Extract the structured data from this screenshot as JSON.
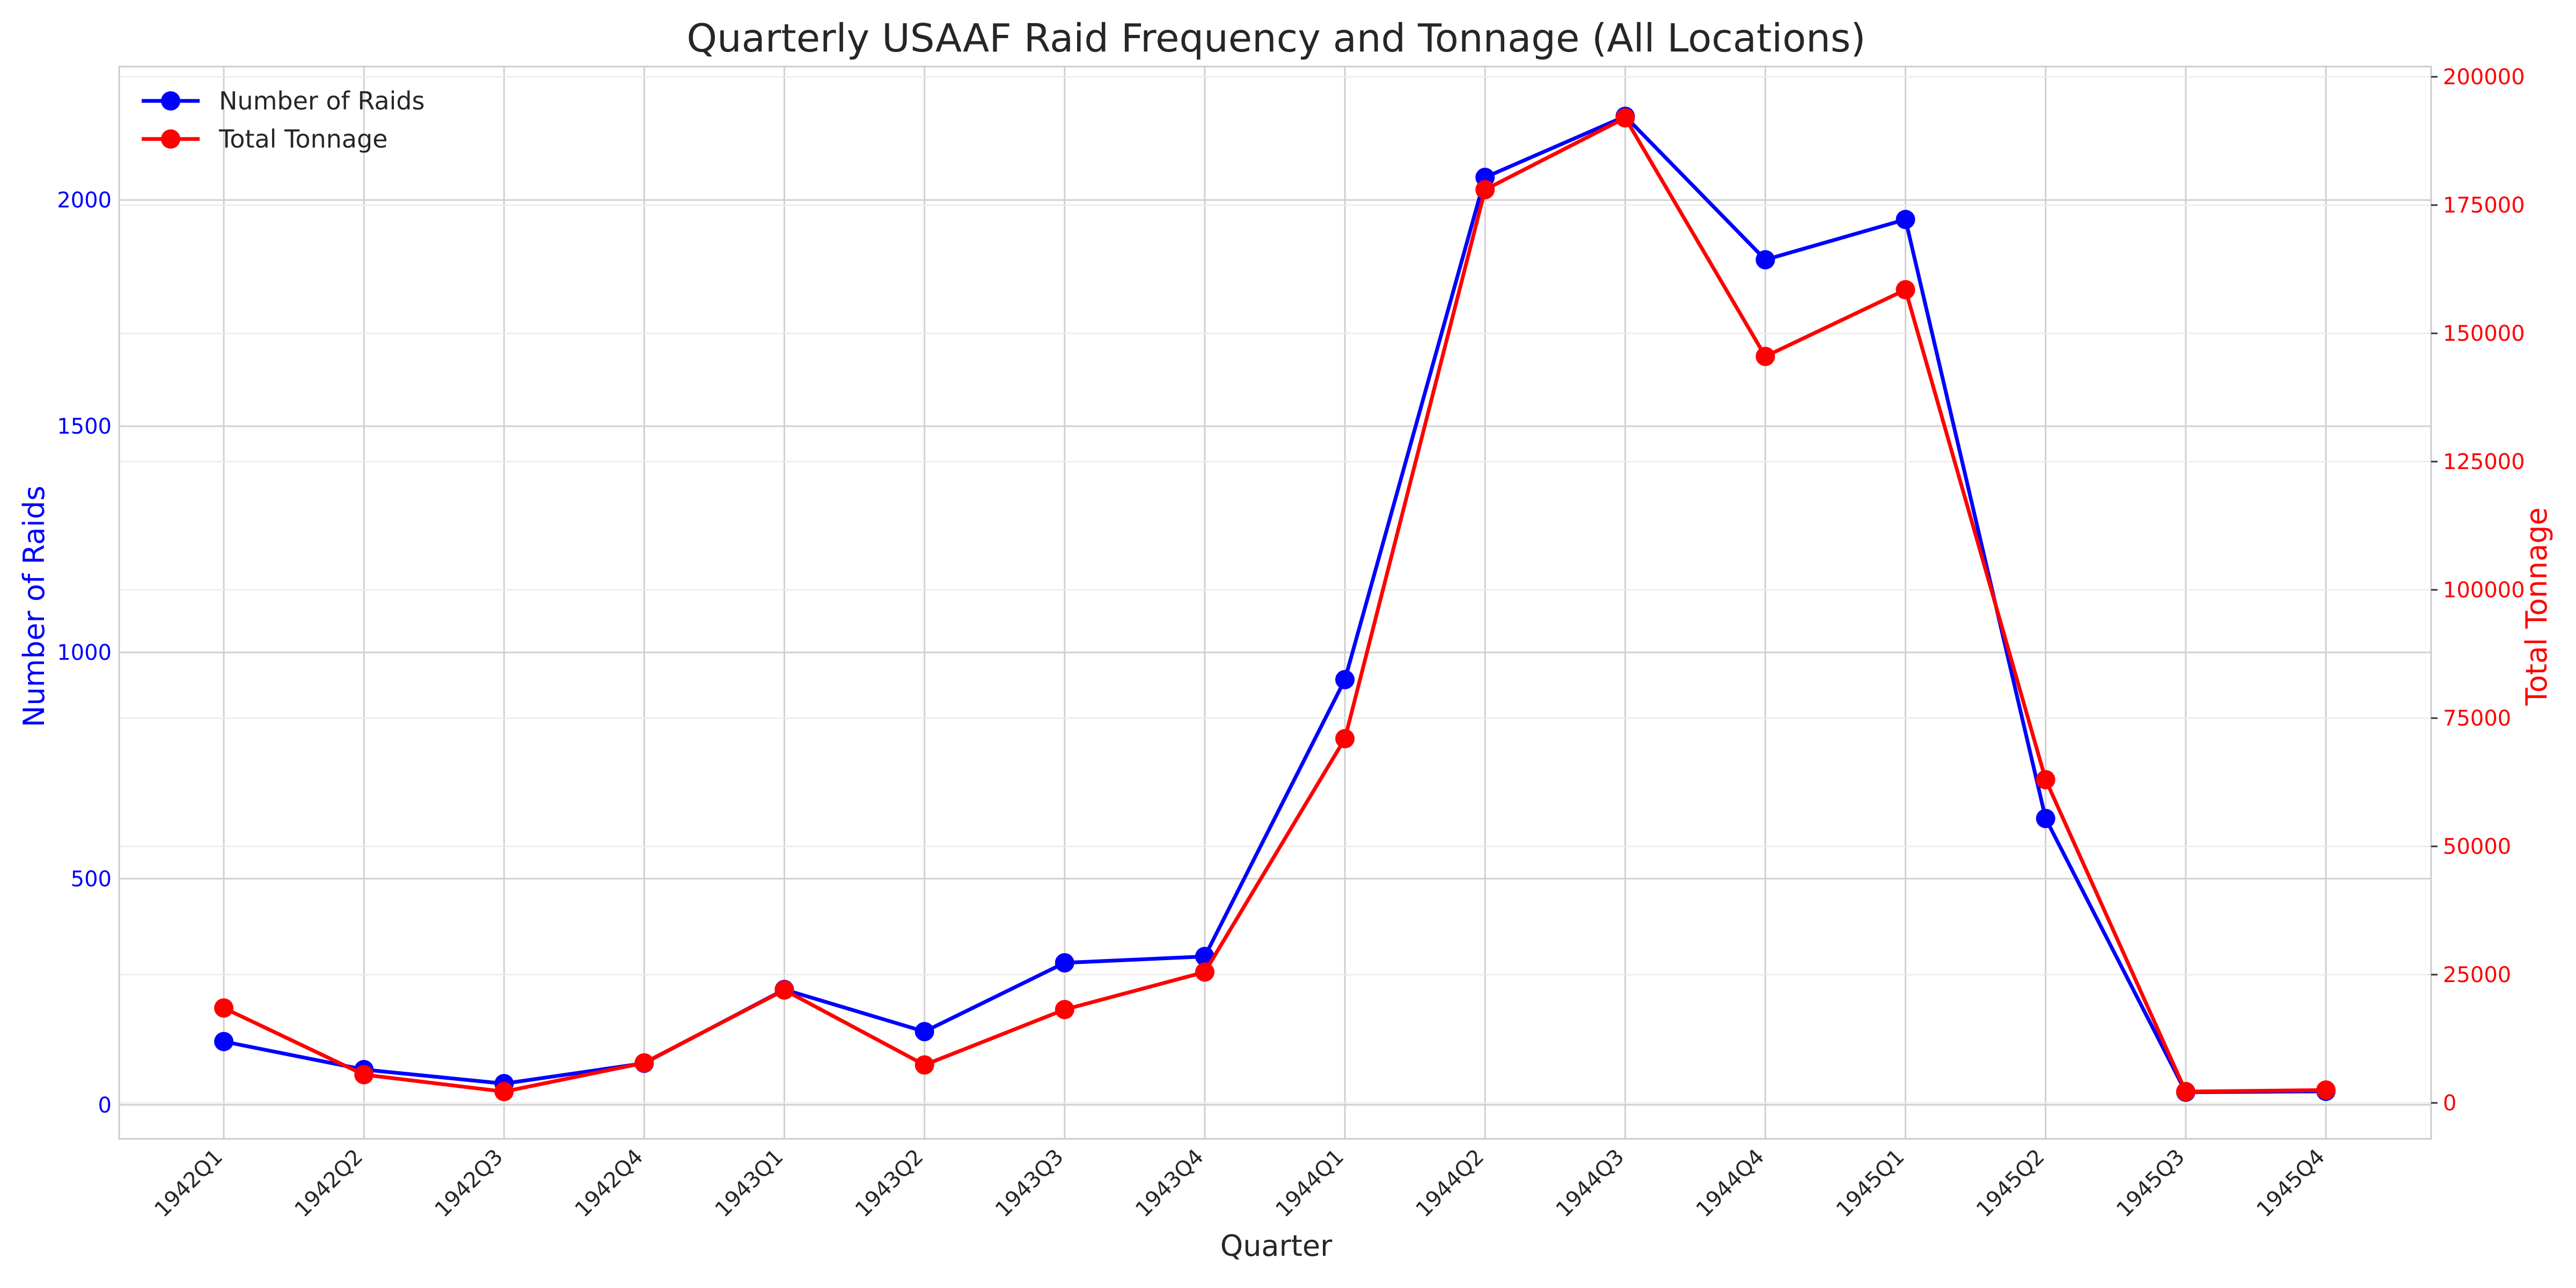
{
  "chart_data": {
    "type": "line",
    "title": "Quarterly USAAF Raid Frequency and Tonnage (All Locations)",
    "xlabel": "Quarter",
    "ylabel_left": "Number of Raids",
    "ylabel_right": "Total Tonnage",
    "categories": [
      "1942Q1",
      "1942Q2",
      "1942Q3",
      "1942Q4",
      "1943Q1",
      "1943Q2",
      "1943Q3",
      "1943Q4",
      "1944Q1",
      "1944Q2",
      "1944Q3",
      "1944Q4",
      "1945Q1",
      "1945Q2",
      "1945Q3",
      "1945Q4"
    ],
    "y_left_ticks": [
      0,
      500,
      1000,
      1500,
      2000
    ],
    "y_right_ticks": [
      0,
      25000,
      50000,
      75000,
      100000,
      125000,
      150000,
      175000,
      200000
    ],
    "ylim_left": [
      -75,
      2295
    ],
    "ylim_right": [
      -7000,
      202000
    ],
    "series": [
      {
        "name": "Number of Raids",
        "axis": "left",
        "color": "#0000ff",
        "values": [
          140,
          78,
          47,
          92,
          255,
          162,
          314,
          328,
          940,
          2050,
          2185,
          1868,
          1957,
          633,
          28,
          30
        ]
      },
      {
        "name": "Total Tonnage",
        "axis": "right",
        "color": "#ff0000",
        "values": [
          18500,
          5500,
          2200,
          7800,
          22000,
          7400,
          18200,
          25500,
          71000,
          178000,
          192000,
          145500,
          158500,
          63000,
          2200,
          2500
        ]
      }
    ],
    "grid": true,
    "legend_position": "top-left"
  }
}
